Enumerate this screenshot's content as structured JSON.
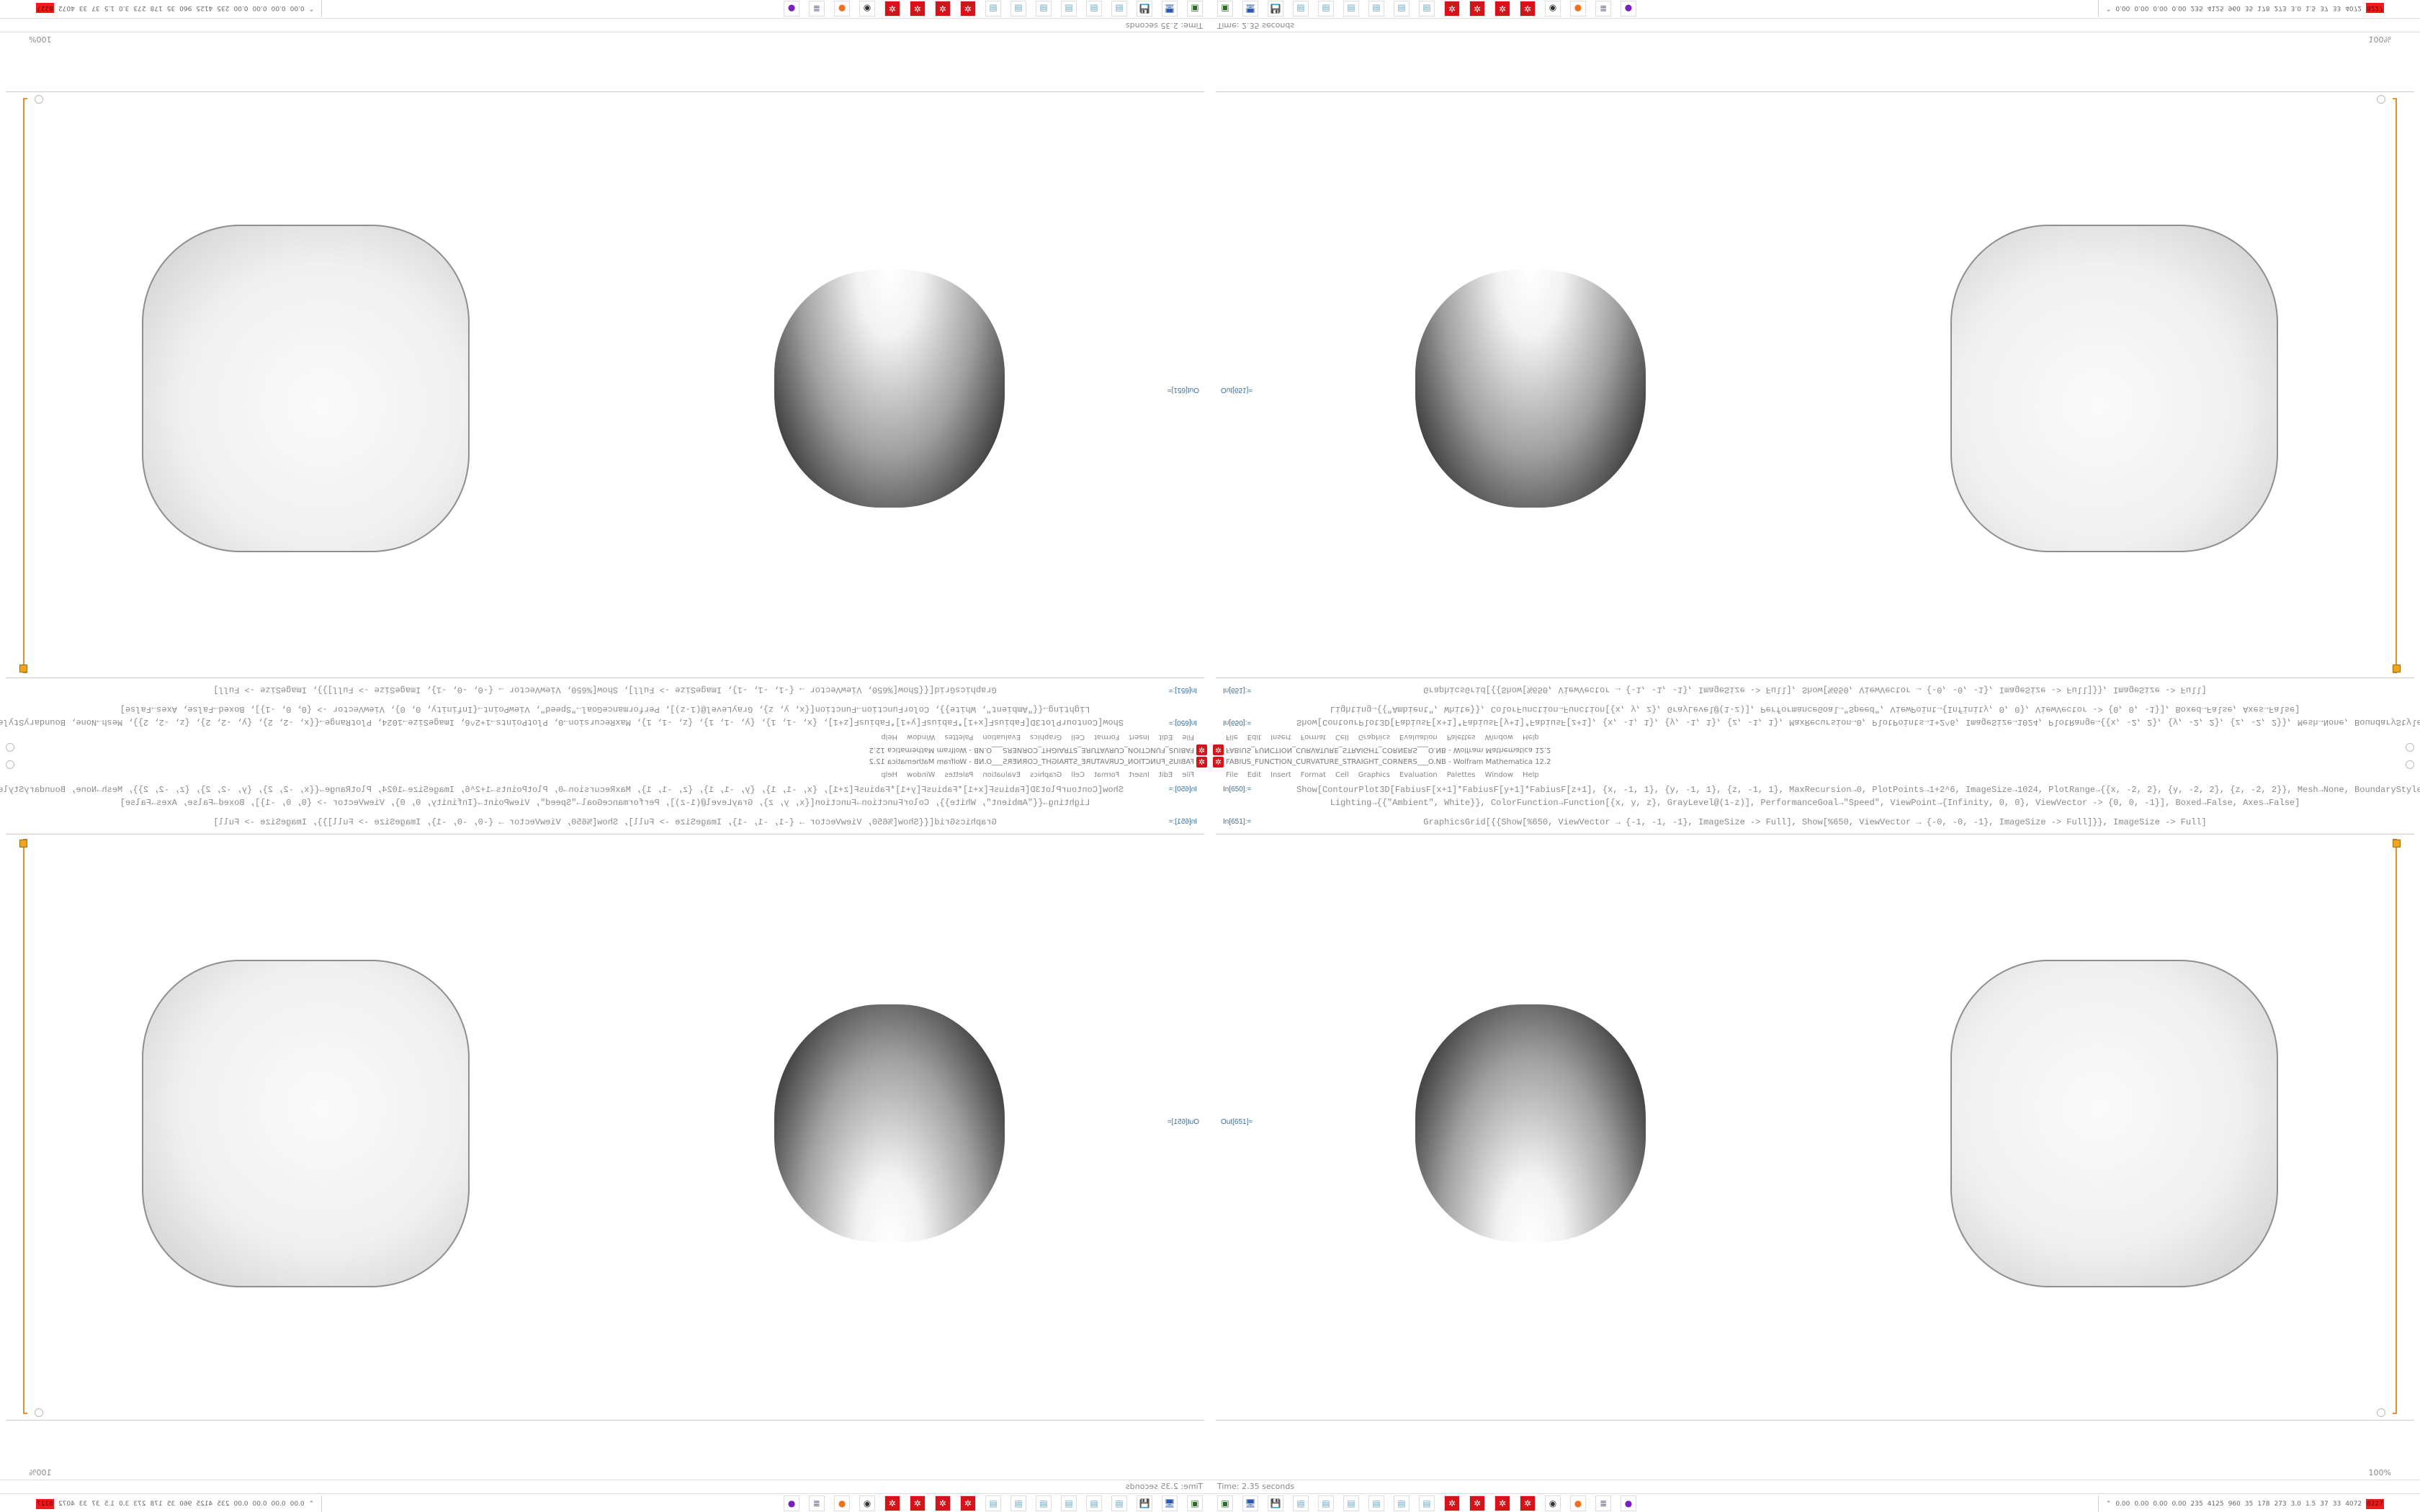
{
  "window": {
    "title": "FABIUS_FUNCTION_CURVATURE_STRAIGHT_CORNERS___O.NB - Wolfram Mathematica 12.2",
    "app_icon": "mathematica-gear-icon",
    "app_icon_color": "#d6131a"
  },
  "menu": [
    "File",
    "Edit",
    "Insert",
    "Format",
    "Cell",
    "Graphics",
    "Evaluation",
    "Palettes",
    "Window",
    "Help"
  ],
  "cells": {
    "in1_label": "In[650]:=",
    "in1_line1": "Show[ContourPlot3D[FabiusF[x+1]*FabiusF[y+1]*FabiusF[z+1], {x, -1, 1}, {y, -1, 1}, {z, -1, 1}, MaxRecursion→0, PlotPoints→1+2^6, ImageSize→1024, PlotRange→{{x, -2, 2}, {y, -2, 2}, {z, -2, 2}}, Mesh→None, BoundaryStyle→None,",
    "in1_line2": "Lighting→{{\"Ambient\", White}}, ColorFunction→Function[{x, y, z}, GrayLevel@(1-z)], PerformanceGoal→\"Speed\", ViewPoint→{Infinity, 0, 0}, ViewVector -> {0, 0, -1}], Boxed→False, Axes→False]",
    "in2_label": "In[651]:=",
    "in2_line1": "GraphicsGrid[{{Show[%650, ViewVector → {-1, -1, -1}, ImageSize -> Full], Show[%650, ViewVector → {-0, -0, -1}, ImageSize -> Full]}}, ImageSize -> Full]",
    "out_label": "Out[651]="
  },
  "status": {
    "time": "Time: 2.35 seconds",
    "zoom": "100%"
  },
  "taskbar": {
    "icons": [
      "green-drive-icon",
      "monitor-icon",
      "floppy-64-icon",
      "notepad-icon",
      "notepad-icon",
      "notepad-icon",
      "notepad-icon",
      "notepad-icon",
      "notepad-icon",
      "mathematica-icon",
      "mathematica-icon",
      "mathematica-icon",
      "mathematica-icon",
      "webcam-icon",
      "firefox-icon",
      "document-scroll-icon",
      "purple-owl-icon"
    ],
    "stats": [
      "0.00",
      "0.00",
      "0.00",
      "0.00",
      "235",
      "4125",
      "960",
      "35",
      "178",
      "273",
      "3.0",
      "1.5",
      "37",
      "33",
      "4072"
    ],
    "stats_hot": "8227",
    "hot_color": "#f21a1a"
  }
}
